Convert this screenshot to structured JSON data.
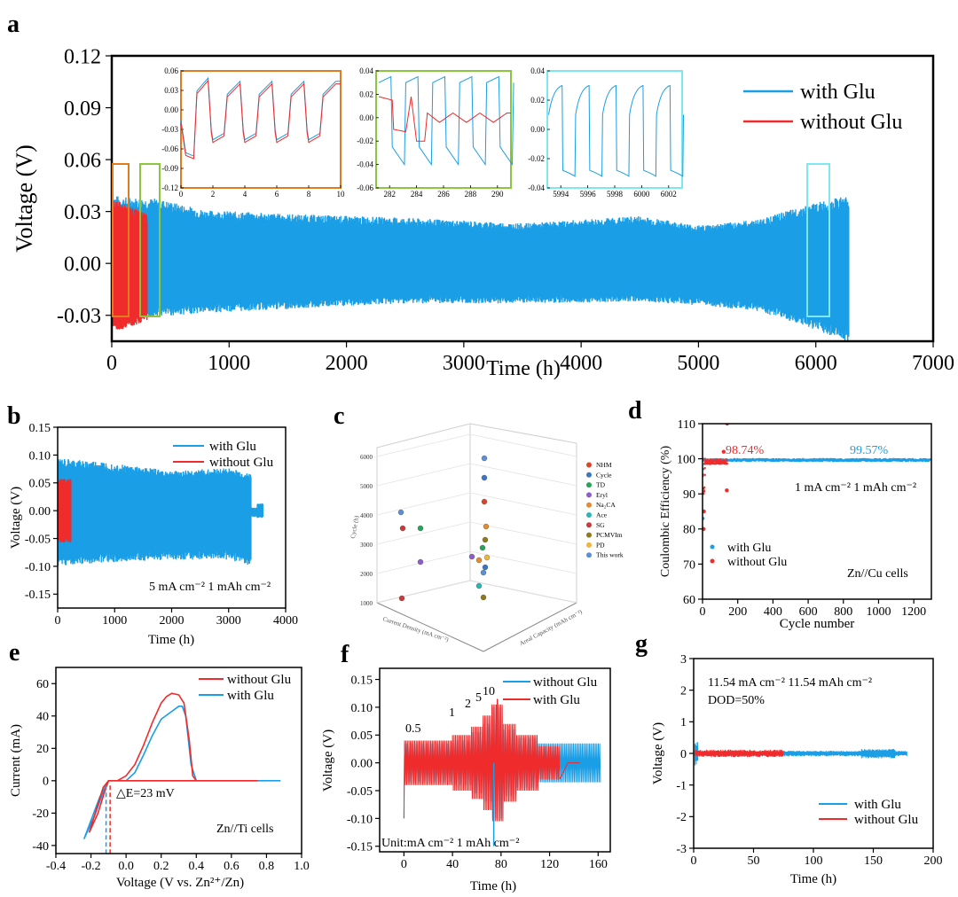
{
  "colors": {
    "glu": "#1a9ee5",
    "noglu": "#f02b2b",
    "frame": "#000000",
    "inset1": "#e07b1f",
    "inset2": "#8cc63f",
    "inset3": "#7ee8f0"
  },
  "chart_data": [
    {
      "id": "a",
      "panel_label": "a",
      "type": "line",
      "xlabel": "Time (h)",
      "ylabel": "Voltage (V)",
      "xlim": [
        0,
        7000
      ],
      "ylim": [
        -0.045,
        0.12
      ],
      "xticks": [
        "0",
        "1000",
        "2000",
        "3000",
        "4000",
        "5000",
        "6000",
        "7000"
      ],
      "yticks": [
        "-0.03",
        "0.00",
        "0.03",
        "0.06",
        "0.09",
        "0.12"
      ],
      "legend": [
        "with Glu",
        "without Glu"
      ],
      "series": [
        {
          "name": "with Glu",
          "env_x": [
            0,
            100,
            400,
            800,
            1500,
            2500,
            3500,
            4500,
            5000,
            5500,
            6000,
            6300
          ],
          "upper": [
            0.036,
            0.035,
            0.034,
            0.028,
            0.026,
            0.024,
            0.021,
            0.025,
            0.02,
            0.023,
            0.032,
            0.036
          ],
          "lower": [
            -0.033,
            -0.03,
            -0.028,
            -0.026,
            -0.024,
            -0.021,
            -0.021,
            -0.02,
            -0.022,
            -0.025,
            -0.035,
            -0.042
          ]
        },
        {
          "name": "without Glu",
          "env_x": [
            0,
            50,
            150,
            300
          ],
          "upper": [
            0.033,
            0.033,
            0.03,
            0.026
          ],
          "lower": [
            -0.033,
            -0.035,
            -0.034,
            -0.03
          ]
        }
      ],
      "insets": [
        {
          "xticks": [
            "0",
            "2",
            "4",
            "6",
            "8",
            "10"
          ],
          "yticks": [
            "0.06",
            "0.03",
            "0.00",
            "-0.03",
            "-0.06",
            "-0.09",
            "-0.12"
          ],
          "xlim": [
            0,
            10
          ],
          "ylim": [
            -0.12,
            0.06
          ]
        },
        {
          "xticks": [
            "282",
            "284",
            "286",
            "288",
            "290"
          ],
          "yticks": [
            "0.04",
            "0.02",
            "0.00",
            "-0.02",
            "-0.04",
            "-0.06"
          ],
          "xlim": [
            281,
            291
          ],
          "ylim": [
            -0.06,
            0.04
          ]
        },
        {
          "xticks": [
            "5994",
            "5996",
            "5998",
            "6000",
            "6002"
          ],
          "yticks": [
            "0.04",
            "0.02",
            "0.00",
            "-0.02",
            "-0.04"
          ],
          "xlim": [
            5993,
            6003
          ],
          "ylim": [
            -0.04,
            0.04
          ]
        }
      ]
    },
    {
      "id": "b",
      "panel_label": "b",
      "type": "line",
      "xlabel": "Time (h)",
      "ylabel": "Voltage (V)",
      "xlim": [
        0,
        4000
      ],
      "ylim": [
        -0.175,
        0.15
      ],
      "xticks": [
        "0",
        "1000",
        "2000",
        "3000",
        "4000"
      ],
      "yticks": [
        "0.15",
        "0.10",
        "0.05",
        "0.00",
        "-0.05",
        "-0.10",
        "-0.15"
      ],
      "legend": [
        "with Glu",
        "without Glu"
      ],
      "annotation": "5 mA cm⁻² 1 mAh cm⁻²"
    },
    {
      "id": "c",
      "panel_label": "c",
      "type": "scatter",
      "ztick_labels": [
        "6000",
        "5000",
        "4000",
        "3000",
        "2000",
        "1000"
      ],
      "axis_labels": [
        "Cycle (h)",
        "Current Density (mA cm⁻²)",
        "Areal Capacity (mAh cm⁻²)"
      ],
      "legend": [
        "NHM",
        "Cycle",
        "TD",
        "Eryl",
        "Na₂CA",
        "Ace",
        "SG",
        "PCMVIm",
        "PD",
        "This work"
      ],
      "legend_colors": [
        "#d9472b",
        "#3a76c4",
        "#27a35a",
        "#8b5fc7",
        "#e68a2e",
        "#2bb5b5",
        "#c93a3a",
        "#8d7a1a",
        "#f0b43a",
        "#5b8fd6"
      ]
    },
    {
      "id": "d",
      "panel_label": "d",
      "type": "scatter",
      "xlabel": "Cycle number",
      "ylabel": "Coulombic Efficiency (%)",
      "xlim": [
        0,
        1300
      ],
      "ylim": [
        60,
        110
      ],
      "xticks": [
        "0",
        "200",
        "400",
        "600",
        "800",
        "1000",
        "1200"
      ],
      "yticks": [
        "110",
        "100",
        "90",
        "80",
        "70",
        "60"
      ],
      "legend": [
        "with Glu",
        "without Glu"
      ],
      "value_labels": [
        "98.74%",
        "99.57%"
      ],
      "annotation": "1 mA cm⁻² 1 mAh cm⁻²",
      "cell_label": "Zn//Cu cells"
    },
    {
      "id": "e",
      "panel_label": "e",
      "type": "line",
      "xlabel": "Voltage (V vs. Zn²⁺/Zn)",
      "ylabel": "Current (mA)",
      "xlim": [
        -0.4,
        1.0
      ],
      "ylim": [
        -45,
        70
      ],
      "xticks": [
        "-0.4",
        "-0.2",
        "0.0",
        "0.2",
        "0.4",
        "0.6",
        "0.8",
        "1.0"
      ],
      "yticks": [
        "60",
        "40",
        "20",
        "0",
        "-20",
        "-40"
      ],
      "legend": [
        "without Glu",
        "with Glu"
      ],
      "annotation": "△E=23 mV",
      "cell_label": "Zn//Ti cells"
    },
    {
      "id": "f",
      "panel_label": "f",
      "type": "line",
      "xlabel": "Time (h)",
      "ylabel": "Voltage (V)",
      "xlim": [
        -20,
        170
      ],
      "ylim": [
        -0.16,
        0.17
      ],
      "xticks": [
        "0",
        "40",
        "80",
        "120",
        "160"
      ],
      "yticks": [
        "0.15",
        "0.10",
        "0.05",
        "0.00",
        "-0.05",
        "-0.10",
        "-0.15"
      ],
      "legend": [
        "without Glu",
        "with Glu"
      ],
      "rate_labels": [
        "0.5",
        "1",
        "2",
        "5",
        "10"
      ],
      "annotation": "Unit:mA cm⁻² 1 mAh cm⁻²"
    },
    {
      "id": "g",
      "panel_label": "g",
      "type": "line",
      "xlabel": "Time (h)",
      "ylabel": "Voltage (V)",
      "xlim": [
        0,
        200
      ],
      "ylim": [
        -3,
        3
      ],
      "xticks": [
        "0",
        "50",
        "100",
        "150",
        "200"
      ],
      "yticks": [
        "3",
        "2",
        "1",
        "0",
        "-1",
        "-2",
        "-3"
      ],
      "legend": [
        "with Glu",
        "without Glu"
      ],
      "annotation_line1": "11.54 mA cm⁻² 11.54 mAh cm⁻²",
      "annotation_line2": "DOD=50%"
    }
  ]
}
